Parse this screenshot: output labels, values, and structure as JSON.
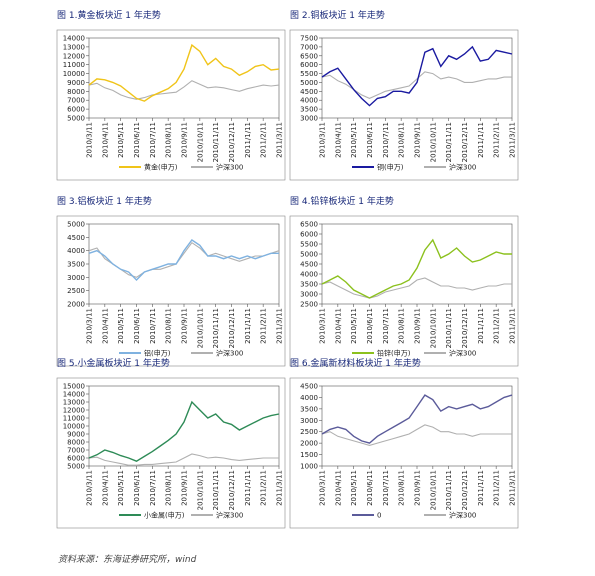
{
  "chart_data": [
    {
      "type": "line",
      "title": "图 1.黄金板块近 1 年走势",
      "categories": [
        "2010/3/11",
        null,
        "2010/4/11",
        null,
        "2010/5/11",
        null,
        "2010/6/11",
        null,
        "2010/7/11",
        null,
        "2010/8/11",
        null,
        "2010/9/11",
        null,
        "2010/10/11",
        null,
        "2010/11/11",
        null,
        "2010/12/11",
        null,
        "2011/1/11",
        null,
        "2011/2/11",
        null,
        "2011/3/11"
      ],
      "series": [
        {
          "name": "黄金(申万)",
          "color": "#f0c419",
          "values": [
            8700,
            9400,
            9300,
            9000,
            8600,
            7900,
            7200,
            6900,
            7500,
            7900,
            8300,
            9000,
            10500,
            13200,
            12500,
            11000,
            11700,
            10800,
            10500,
            9800,
            10200,
            10800,
            11000,
            10400,
            10500
          ]
        },
        {
          "name": "沪深300",
          "color": "#b0b0b0",
          "values": [
            8700,
            8900,
            8400,
            8100,
            7600,
            7300,
            7100,
            7300,
            7600,
            7700,
            7800,
            7900,
            8500,
            9200,
            8800,
            8400,
            8500,
            8400,
            8200,
            8000,
            8300,
            8500,
            8700,
            8600,
            8700
          ]
        }
      ],
      "ylim": [
        5000,
        14000
      ],
      "yticks": [
        5000,
        6000,
        7000,
        8000,
        9000,
        10000,
        11000,
        12000,
        13000,
        14000
      ]
    },
    {
      "type": "line",
      "title": "图 2.铜板块近 1 年走势",
      "categories": [
        "2010/3/11",
        null,
        "2010/4/11",
        null,
        "2010/5/11",
        null,
        "2010/6/11",
        null,
        "2010/7/11",
        null,
        "2010/8/11",
        null,
        "2010/9/11",
        null,
        "2010/10/11",
        null,
        "2010/11/11",
        null,
        "2010/12/11",
        null,
        "2011/1/11",
        null,
        "2011/2/11",
        null,
        "2011/3/11"
      ],
      "series": [
        {
          "name": "铜(申万)",
          "color": "#1a1aa0",
          "values": [
            5300,
            5600,
            5800,
            5200,
            4600,
            4100,
            3700,
            4100,
            4200,
            4500,
            4500,
            4400,
            5000,
            6700,
            6900,
            5900,
            6500,
            6300,
            6600,
            7000,
            6200,
            6300,
            6800,
            6700,
            6600
          ]
        },
        {
          "name": "沪深300",
          "color": "#b0b0b0",
          "values": [
            5300,
            5400,
            5100,
            4900,
            4600,
            4300,
            4100,
            4300,
            4500,
            4600,
            4700,
            4800,
            5200,
            5600,
            5500,
            5200,
            5300,
            5200,
            5000,
            5000,
            5100,
            5200,
            5200,
            5300,
            5300
          ]
        }
      ],
      "ylim": [
        3000,
        7500
      ],
      "yticks": [
        3000,
        3500,
        4000,
        4500,
        5000,
        5500,
        6000,
        6500,
        7000,
        7500
      ]
    },
    {
      "type": "line",
      "title": "图 3.铝板块近 1 年走势",
      "categories": [
        "2010/3/11",
        null,
        "2010/4/11",
        null,
        "2010/5/11",
        null,
        "2010/6/11",
        null,
        "2010/7/11",
        null,
        "2010/8/11",
        null,
        "2010/9/11",
        null,
        "2010/10/11",
        null,
        "2010/11/11",
        null,
        "2010/12/11",
        null,
        "2011/1/11",
        null,
        "2011/2/11",
        null,
        "2011/3/11"
      ],
      "series": [
        {
          "name": "铝(申万)",
          "color": "#7fb2e0",
          "values": [
            3900,
            4000,
            3800,
            3500,
            3300,
            3200,
            2900,
            3200,
            3300,
            3400,
            3500,
            3500,
            4000,
            4400,
            4200,
            3800,
            3800,
            3700,
            3800,
            3700,
            3800,
            3700,
            3800,
            3900,
            3900
          ]
        },
        {
          "name": "沪深300",
          "color": "#b0b0b0",
          "values": [
            4000,
            4100,
            3700,
            3500,
            3300,
            3100,
            3000,
            3200,
            3300,
            3300,
            3400,
            3500,
            3900,
            4300,
            4100,
            3800,
            3900,
            3800,
            3700,
            3600,
            3700,
            3800,
            3800,
            3900,
            4000
          ]
        }
      ],
      "ylim": [
        2000,
        5000
      ],
      "yticks": [
        2000,
        2500,
        3000,
        3500,
        4000,
        4500,
        5000
      ]
    },
    {
      "type": "line",
      "title": "图 4.铅锌板块近 1 年走势",
      "categories": [
        "2010/3/11",
        null,
        "2010/4/11",
        null,
        "2010/5/11",
        null,
        "2010/6/11",
        null,
        "2010/7/11",
        null,
        "2010/8/11",
        null,
        "2010/9/11",
        null,
        "2010/10/11",
        null,
        "2010/11/11",
        null,
        "2010/12/11",
        null,
        "2011/1/11",
        null,
        "2011/2/11",
        null,
        "2011/3/11"
      ],
      "series": [
        {
          "name": "铅锌(申万)",
          "color": "#8cc11e",
          "values": [
            3500,
            3700,
            3900,
            3600,
            3200,
            3000,
            2800,
            3000,
            3200,
            3400,
            3500,
            3700,
            4300,
            5200,
            5700,
            4800,
            5000,
            5300,
            4900,
            4600,
            4700,
            4900,
            5100,
            5000,
            5000
          ]
        },
        {
          "name": "沪深300",
          "color": "#b0b0b0",
          "values": [
            3500,
            3600,
            3400,
            3200,
            3000,
            2900,
            2800,
            2900,
            3100,
            3200,
            3300,
            3400,
            3700,
            3800,
            3600,
            3400,
            3400,
            3300,
            3300,
            3200,
            3300,
            3400,
            3400,
            3500,
            3500
          ]
        }
      ],
      "ylim": [
        2500,
        6500
      ],
      "yticks": [
        2500,
        3000,
        3500,
        4000,
        4500,
        5000,
        5500,
        6000,
        6500
      ]
    },
    {
      "type": "line",
      "title": "图 5.小金属板块近 1 年走势",
      "categories": [
        "2010/3/11",
        null,
        "2010/4/11",
        null,
        "2010/5/11",
        null,
        "2010/6/11",
        null,
        "2010/7/11",
        null,
        "2010/8/11",
        null,
        "2010/9/11",
        null,
        "2010/10/11",
        null,
        "2010/11/11",
        null,
        "2010/12/11",
        null,
        "2011/1/11",
        null,
        "2011/2/11",
        null,
        "2011/3/11"
      ],
      "series": [
        {
          "name": "小金属(申万)",
          "color": "#2e8b57",
          "values": [
            6000,
            6400,
            7000,
            6700,
            6300,
            6000,
            5600,
            6200,
            6800,
            7500,
            8200,
            9000,
            10500,
            13000,
            12000,
            11000,
            11500,
            10500,
            10200,
            9500,
            10000,
            10500,
            11000,
            11300,
            11500
          ]
        },
        {
          "name": "沪深300",
          "color": "#b0b0b0",
          "values": [
            6000,
            6100,
            5700,
            5500,
            5300,
            5100,
            5100,
            5200,
            5200,
            5300,
            5400,
            5500,
            6000,
            6500,
            6300,
            6000,
            6100,
            6000,
            5800,
            5700,
            5800,
            5900,
            6000,
            6000,
            6000
          ]
        }
      ],
      "ylim": [
        5000,
        15000
      ],
      "yticks": [
        5000,
        6000,
        7000,
        8000,
        9000,
        10000,
        11000,
        12000,
        13000,
        14000,
        15000
      ]
    },
    {
      "type": "line",
      "title": "图 6.金属新材料板块近 1 年走势",
      "categories": [
        "2010/3/11",
        null,
        "2010/4/11",
        null,
        "2010/5/11",
        null,
        "2010/6/11",
        null,
        "2010/7/11",
        null,
        "2010/8/11",
        null,
        "2010/9/11",
        null,
        "2010/10/11",
        null,
        "2010/11/11",
        null,
        "2010/12/11",
        null,
        "2011/1/11",
        null,
        "2011/2/11",
        null,
        "2011/3/11"
      ],
      "series": [
        {
          "name": "0",
          "color": "#5b5b9a",
          "values": [
            2400,
            2600,
            2700,
            2600,
            2300,
            2100,
            2000,
            2300,
            2500,
            2700,
            2900,
            3100,
            3600,
            4100,
            3900,
            3400,
            3600,
            3500,
            3600,
            3700,
            3500,
            3600,
            3800,
            4000,
            4100
          ]
        },
        {
          "name": "沪深300",
          "color": "#b0b0b0",
          "values": [
            2400,
            2500,
            2300,
            2200,
            2100,
            2000,
            1900,
            2000,
            2100,
            2200,
            2300,
            2400,
            2600,
            2800,
            2700,
            2500,
            2500,
            2400,
            2400,
            2300,
            2400,
            2400,
            2400,
            2400,
            2400
          ]
        }
      ],
      "ylim": [
        1000,
        4500
      ],
      "yticks": [
        1000,
        1500,
        2000,
        2500,
        3000,
        3500,
        4000,
        4500
      ]
    }
  ],
  "source": "资料来源：东海证券研究所，wind"
}
